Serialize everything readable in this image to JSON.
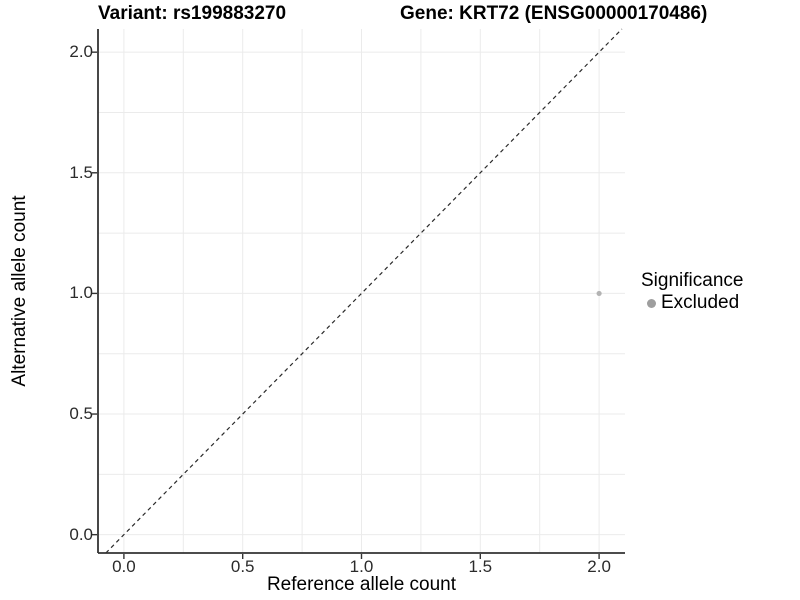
{
  "titles": {
    "variant": "Variant: rs199883270",
    "gene": "Gene: KRT72 (ENSG00000170486)"
  },
  "chart_data": {
    "type": "scatter",
    "xlabel": "Reference allele count",
    "ylabel": "Alternative allele count",
    "x_ticks": [
      "0.0",
      "0.5",
      "1.0",
      "1.5",
      "2.0"
    ],
    "x_tick_values": [
      0,
      0.5,
      1,
      1.5,
      2
    ],
    "y_ticks": [
      "0.0",
      "0.5",
      "1.0",
      "1.5",
      "2.0"
    ],
    "y_tick_values": [
      0,
      0.5,
      1,
      1.5,
      2
    ],
    "xlim": [
      -0.109,
      2.109
    ],
    "ylim": [
      -0.076,
      2.096
    ],
    "grid_step": 0.25,
    "grid_on": true,
    "grid_color": "#ebebeb",
    "axis_color": "#333333",
    "points": [
      {
        "x": 2.0,
        "y": 1.0,
        "significance": "Excluded",
        "color": "#b3b3b3"
      }
    ],
    "reference_line": {
      "type": "identity",
      "style": "dashed",
      "color": "#2a2a2a"
    },
    "legend": {
      "title": "Significance",
      "position": "right",
      "items": [
        {
          "label": "Excluded",
          "color": "#9e9e9e"
        }
      ]
    }
  }
}
